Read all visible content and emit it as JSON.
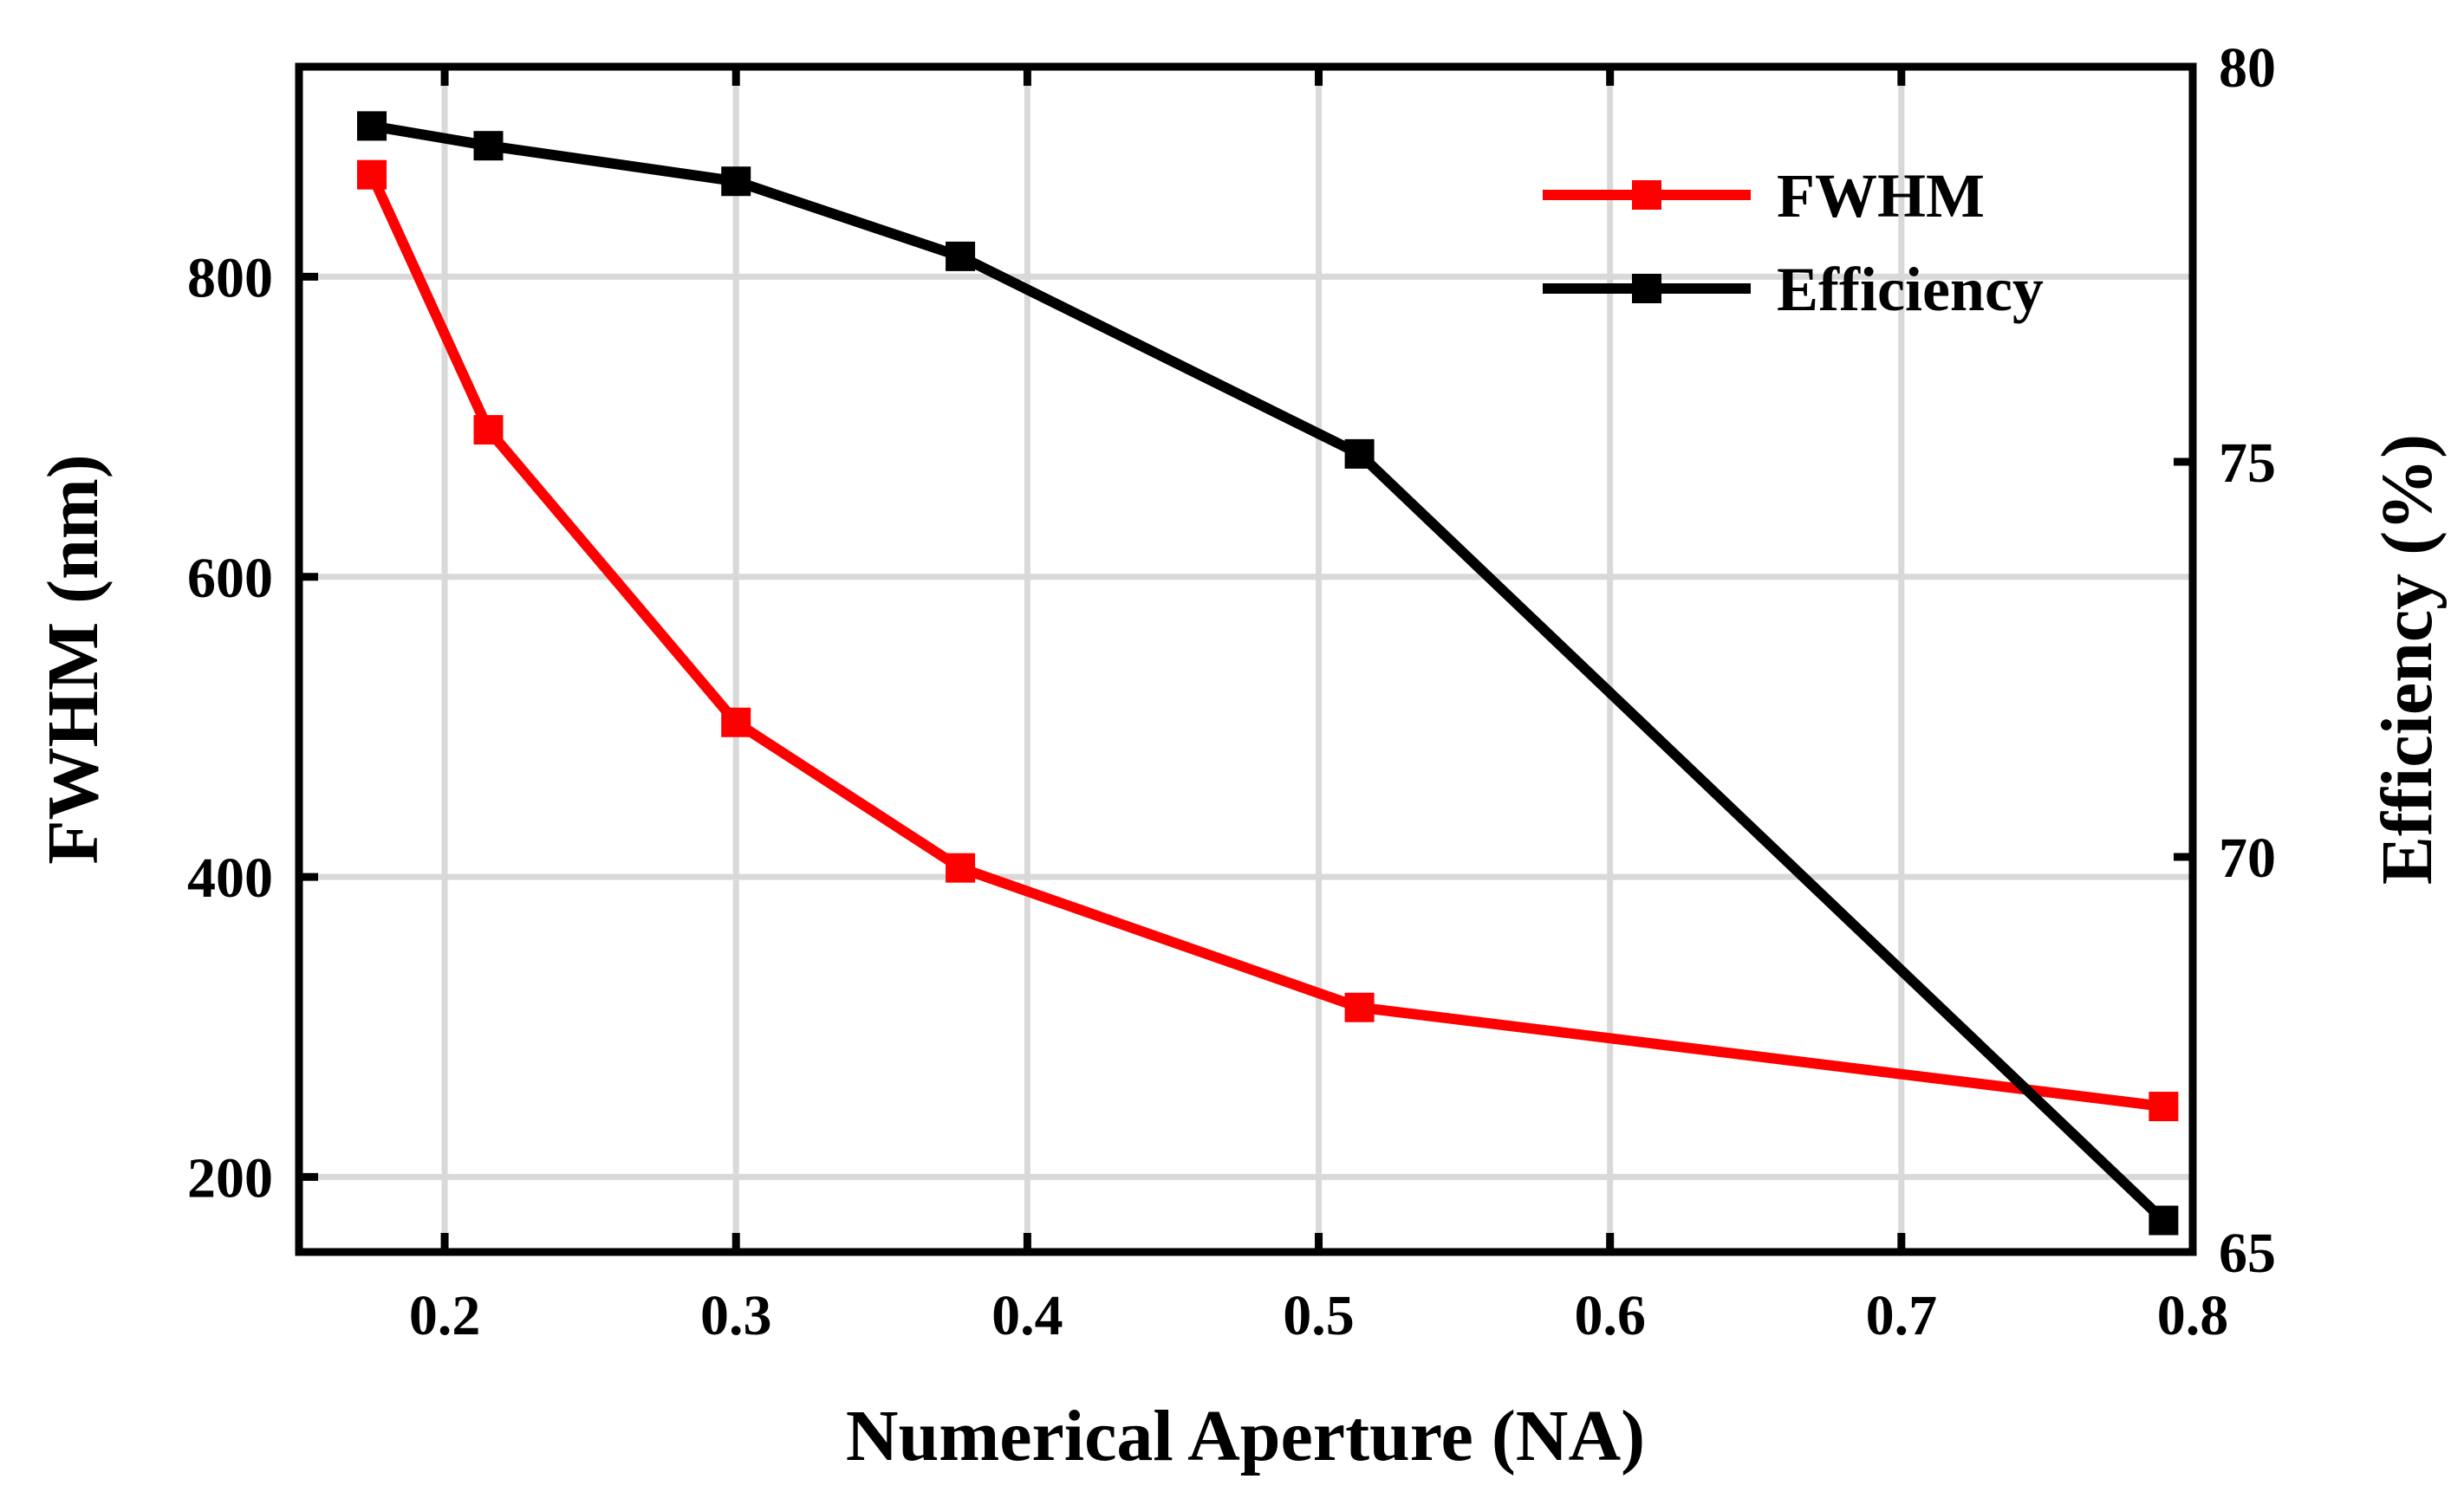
{
  "chart_data": {
    "type": "line",
    "xlabel": "Numerical Aperture (NA)",
    "ylabel_left": "FWHM (nm)",
    "ylabel_right": "Efficiency (%)",
    "xlim": [
      0.15,
      0.8
    ],
    "ylim_left": [
      150,
      940
    ],
    "ylim_right": [
      65,
      80
    ],
    "x_ticks": [
      0.2,
      0.3,
      0.4,
      0.5,
      0.6,
      0.7,
      0.8
    ],
    "y_left_ticks": [
      200,
      400,
      600,
      800
    ],
    "y_right_ticks": [
      65,
      70,
      75,
      80
    ],
    "grid": true,
    "legend_position": "top-right",
    "series": [
      {
        "name": "FWHM",
        "axis": "left",
        "color": "#ff0000",
        "marker": "square",
        "x": [
          0.175,
          0.215,
          0.3,
          0.377,
          0.514,
          0.79
        ],
        "values": [
          868,
          698,
          503,
          406,
          313,
          247
        ]
      },
      {
        "name": "Efficiency",
        "axis": "right",
        "color": "#000000",
        "marker": "square",
        "x": [
          0.175,
          0.215,
          0.3,
          0.377,
          0.514,
          0.79
        ],
        "values": [
          79.25,
          79.0,
          78.55,
          77.6,
          75.1,
          65.4
        ]
      }
    ]
  }
}
